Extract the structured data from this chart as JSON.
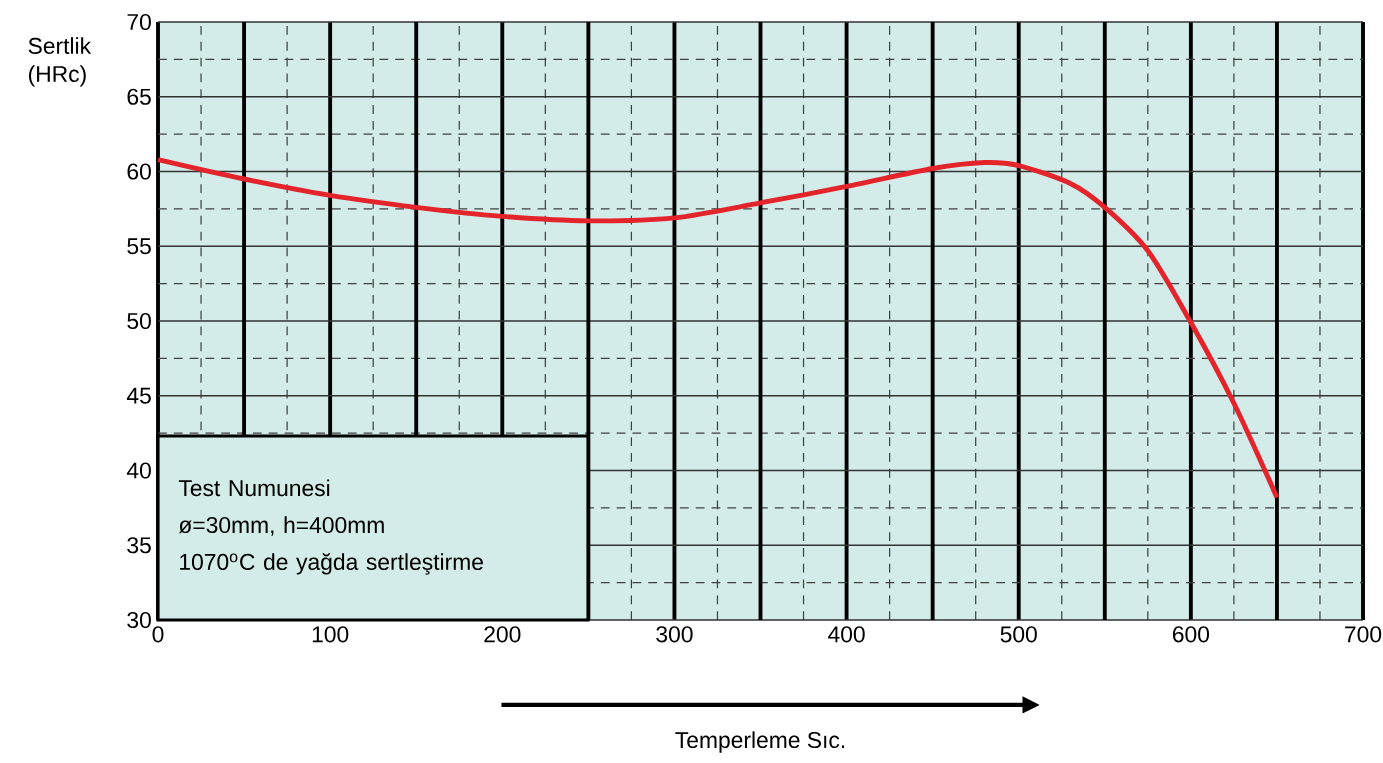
{
  "chart_data": {
    "type": "line",
    "ylabel": "Sertlik (HRc)",
    "xlabel": "Temperleme Sıc.",
    "annotations": [
      "Test Numunesi",
      "ø=30mm, h=400mm",
      "1070$^{o}$C de yağda sertleştirme"
    ],
    "x": [
      0,
      50,
      100,
      150,
      200,
      250,
      300,
      350,
      400,
      450,
      480,
      500,
      530,
      550,
      575,
      600,
      625,
      650
    ],
    "series": [
      {
        "color": "#e3242b",
        "values": [
          60.8,
          59.5,
          58.4,
          57.6,
          57.0,
          56.7,
          56.9,
          57.9,
          59.0,
          60.2,
          60.6,
          60.4,
          59.2,
          57.6,
          54.7,
          49.9,
          44.5,
          38.2
        ]
      }
    ],
    "xlim": [
      0,
      700
    ],
    "ylim": [
      30,
      70
    ],
    "xticks": [
      0,
      100,
      200,
      300,
      400,
      500,
      600,
      700
    ],
    "yticks": [
      30,
      35,
      40,
      45,
      50,
      55,
      60,
      65,
      70
    ],
    "grid": true,
    "marker": "none",
    "line_style": "solid"
  }
}
